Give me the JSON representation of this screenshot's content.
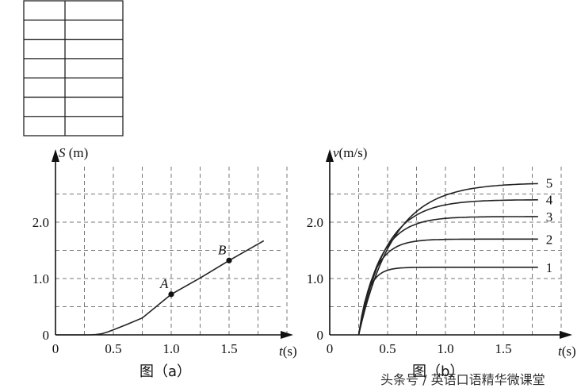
{
  "table": {
    "rows": 7,
    "cols": 2
  },
  "chart_data": [
    {
      "type": "line",
      "xlabel_var": "t",
      "xlabel_unit": "(s)",
      "ylabel_var": "S",
      "ylabel_unit": "(m)",
      "xlim": [
        0,
        2.0
      ],
      "ylim": [
        0,
        2.8
      ],
      "x_ticks": [
        {
          "v": 0,
          "t": "0"
        },
        {
          "v": 0.5,
          "t": "0.5"
        },
        {
          "v": 1.0,
          "t": "1.0"
        },
        {
          "v": 1.5,
          "t": "1.5"
        }
      ],
      "y_ticks": [
        {
          "v": 0,
          "t": "0"
        },
        {
          "v": 1.0,
          "t": "1.0"
        },
        {
          "v": 2.0,
          "t": "2.0"
        }
      ],
      "x_grid": [
        0.25,
        0.5,
        0.75,
        1.0,
        1.25,
        1.5,
        1.75,
        2.0
      ],
      "y_grid": [
        0.5,
        1.0,
        1.5,
        2.0,
        2.5
      ],
      "grid": true,
      "series": [
        {
          "x": [
            0.0,
            0.3,
            0.35,
            0.4,
            0.45,
            0.5,
            0.6,
            0.75,
            1.0,
            1.25,
            1.5,
            1.8
          ],
          "y": [
            0.0,
            0.0,
            0.005,
            0.02,
            0.05,
            0.09,
            0.17,
            0.3,
            0.72,
            1.01,
            1.32,
            1.67
          ]
        }
      ],
      "points": [
        {
          "label": "A",
          "x": 1.0,
          "y": 0.72
        },
        {
          "label": "B",
          "x": 1.5,
          "y": 1.32
        }
      ],
      "caption": "图（a）"
    },
    {
      "type": "line",
      "xlabel_var": "t",
      "xlabel_unit": "(s)",
      "ylabel_var": "v",
      "ylabel_unit": "(m/s)",
      "xlim": [
        0,
        2.0
      ],
      "ylim": [
        0,
        2.8
      ],
      "x_ticks": [
        {
          "v": 0,
          "t": "0"
        },
        {
          "v": 0.5,
          "t": "0.5"
        },
        {
          "v": 1.0,
          "t": "1.0"
        },
        {
          "v": 1.5,
          "t": "1.5"
        }
      ],
      "y_ticks": [
        {
          "v": 0,
          "t": "0"
        },
        {
          "v": 1.0,
          "t": "1.0"
        },
        {
          "v": 2.0,
          "t": "2.0"
        }
      ],
      "x_grid": [
        0.25,
        0.5,
        0.75,
        1.0,
        1.25,
        1.5,
        1.75,
        2.0
      ],
      "y_grid": [
        0.5,
        1.0,
        1.5,
        2.0,
        2.5
      ],
      "grid": true,
      "t0": 0.25,
      "t_end": 1.8,
      "series": [
        {
          "name": "5",
          "vmax": 2.7,
          "tau": 0.3
        },
        {
          "name": "4",
          "vmax": 2.4,
          "tau": 0.23
        },
        {
          "name": "3",
          "vmax": 2.1,
          "tau": 0.18
        },
        {
          "name": "2",
          "vmax": 1.7,
          "tau": 0.13
        },
        {
          "name": "1",
          "vmax": 1.2,
          "tau": 0.08
        }
      ],
      "caption": "图（b）"
    }
  ],
  "watermark": "头条号 / 英语口语精华微课堂"
}
